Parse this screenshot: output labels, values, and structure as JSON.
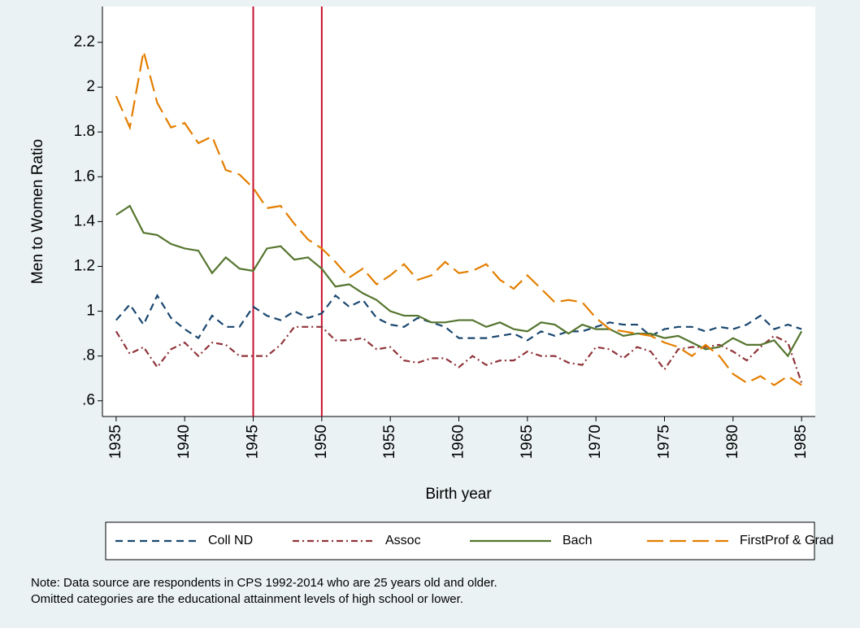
{
  "chart_data": {
    "type": "line",
    "ylabel": "Men to Women Ratio",
    "xlabel": "Birth year",
    "x": [
      1935,
      1936,
      1937,
      1938,
      1939,
      1940,
      1941,
      1942,
      1943,
      1944,
      1945,
      1946,
      1947,
      1948,
      1949,
      1950,
      1951,
      1952,
      1953,
      1954,
      1955,
      1956,
      1957,
      1958,
      1959,
      1960,
      1961,
      1962,
      1963,
      1964,
      1965,
      1966,
      1967,
      1968,
      1969,
      1970,
      1971,
      1972,
      1973,
      1974,
      1975,
      1976,
      1977,
      1978,
      1979,
      1980,
      1981,
      1982,
      1983,
      1984,
      1985
    ],
    "series": [
      {
        "name": "Coll ND",
        "color": "#1a476f",
        "style": "dash",
        "values": [
          0.96,
          1.03,
          0.94,
          1.07,
          0.97,
          0.92,
          0.88,
          0.98,
          0.93,
          0.93,
          1.02,
          0.98,
          0.96,
          1.0,
          0.97,
          0.99,
          1.07,
          1.02,
          1.05,
          0.97,
          0.94,
          0.93,
          0.97,
          0.95,
          0.93,
          0.88,
          0.88,
          0.88,
          0.89,
          0.9,
          0.87,
          0.91,
          0.89,
          0.91,
          0.91,
          0.93,
          0.95,
          0.94,
          0.94,
          0.89,
          0.92,
          0.93,
          0.93,
          0.91,
          0.93,
          0.92,
          0.94,
          0.98,
          0.92,
          0.94,
          0.92
        ]
      },
      {
        "name": "Assoc",
        "color": "#90353b",
        "style": "dash-dot",
        "values": [
          0.91,
          0.81,
          0.84,
          0.75,
          0.83,
          0.86,
          0.8,
          0.86,
          0.85,
          0.8,
          0.8,
          0.8,
          0.85,
          0.93,
          0.93,
          0.93,
          0.87,
          0.87,
          0.88,
          0.83,
          0.84,
          0.78,
          0.77,
          0.79,
          0.79,
          0.75,
          0.8,
          0.76,
          0.78,
          0.78,
          0.82,
          0.8,
          0.8,
          0.77,
          0.76,
          0.84,
          0.83,
          0.79,
          0.84,
          0.82,
          0.74,
          0.83,
          0.84,
          0.84,
          0.85,
          0.82,
          0.78,
          0.84,
          0.89,
          0.86,
          0.68
        ]
      },
      {
        "name": "Bach",
        "color": "#55752f",
        "style": "solid",
        "values": [
          1.43,
          1.47,
          1.35,
          1.34,
          1.3,
          1.28,
          1.27,
          1.17,
          1.24,
          1.19,
          1.18,
          1.28,
          1.29,
          1.23,
          1.24,
          1.19,
          1.11,
          1.12,
          1.08,
          1.05,
          1.0,
          0.98,
          0.98,
          0.95,
          0.95,
          0.96,
          0.96,
          0.93,
          0.95,
          0.92,
          0.91,
          0.95,
          0.94,
          0.9,
          0.94,
          0.92,
          0.92,
          0.89,
          0.9,
          0.9,
          0.88,
          0.89,
          0.86,
          0.83,
          0.84,
          0.88,
          0.85,
          0.85,
          0.87,
          0.8,
          0.91
        ]
      },
      {
        "name": "FirstProf & Grad",
        "color": "#e37e00",
        "style": "long-dash",
        "values": [
          1.96,
          1.82,
          2.16,
          1.93,
          1.82,
          1.84,
          1.75,
          1.78,
          1.63,
          1.61,
          1.55,
          1.46,
          1.47,
          1.39,
          1.32,
          1.28,
          1.22,
          1.15,
          1.19,
          1.12,
          1.16,
          1.21,
          1.14,
          1.16,
          1.22,
          1.17,
          1.18,
          1.21,
          1.14,
          1.1,
          1.16,
          1.1,
          1.04,
          1.05,
          1.04,
          0.97,
          0.92,
          0.91,
          0.9,
          0.89,
          0.86,
          0.84,
          0.8,
          0.85,
          0.8,
          0.72,
          0.68,
          0.71,
          0.67,
          0.71,
          0.67
        ]
      }
    ],
    "xlim": [
      1934,
      1986
    ],
    "xticks": [
      1935,
      1940,
      1945,
      1950,
      1955,
      1960,
      1965,
      1970,
      1975,
      1980,
      1985
    ],
    "ylim": [
      0.53,
      2.36
    ],
    "yticks": [
      {
        "value": 0.6,
        "label": ".6"
      },
      {
        "value": 0.8,
        "label": ".8"
      },
      1,
      1.2,
      1.4,
      1.6,
      1.8,
      2,
      2.2
    ],
    "vlines": [
      1945,
      1950
    ],
    "vline_color": "#c8102e",
    "legend": "bottom",
    "note": [
      "Note: Data source are respondents in CPS 1992-2014 who are 25 years old and older.",
      "Omitted categories are the educational attainment levels of high school or lower."
    ]
  }
}
